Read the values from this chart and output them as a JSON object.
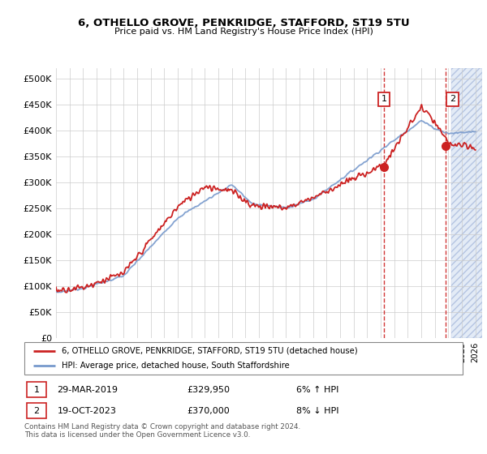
{
  "title": "6, OTHELLO GROVE, PENKRIDGE, STAFFORD, ST19 5TU",
  "subtitle": "Price paid vs. HM Land Registry's House Price Index (HPI)",
  "yticks": [
    0,
    50000,
    100000,
    150000,
    200000,
    250000,
    300000,
    350000,
    400000,
    450000,
    500000
  ],
  "ylim": [
    0,
    520000
  ],
  "xlim_start": 1995.0,
  "xlim_end": 2026.5,
  "hpi_color": "#7799cc",
  "price_color": "#cc2222",
  "sale1_date": 2019.24,
  "sale1_price": 329950,
  "sale2_date": 2023.8,
  "sale2_price": 370000,
  "sale1_info": "29-MAR-2019",
  "sale1_amount": "£329,950",
  "sale1_pct": "6% ↑ HPI",
  "sale2_info": "19-OCT-2023",
  "sale2_amount": "£370,000",
  "sale2_pct": "8% ↓ HPI",
  "legend_line1": "6, OTHELLO GROVE, PENKRIDGE, STAFFORD, ST19 5TU (detached house)",
  "legend_line2": "HPI: Average price, detached house, South Staffordshire",
  "footer": "Contains HM Land Registry data © Crown copyright and database right 2024.\nThis data is licensed under the Open Government Licence v3.0.",
  "future_start": 2024.25,
  "hatch_color": "#c8d8ee",
  "bg_color": "#f7f7f7"
}
